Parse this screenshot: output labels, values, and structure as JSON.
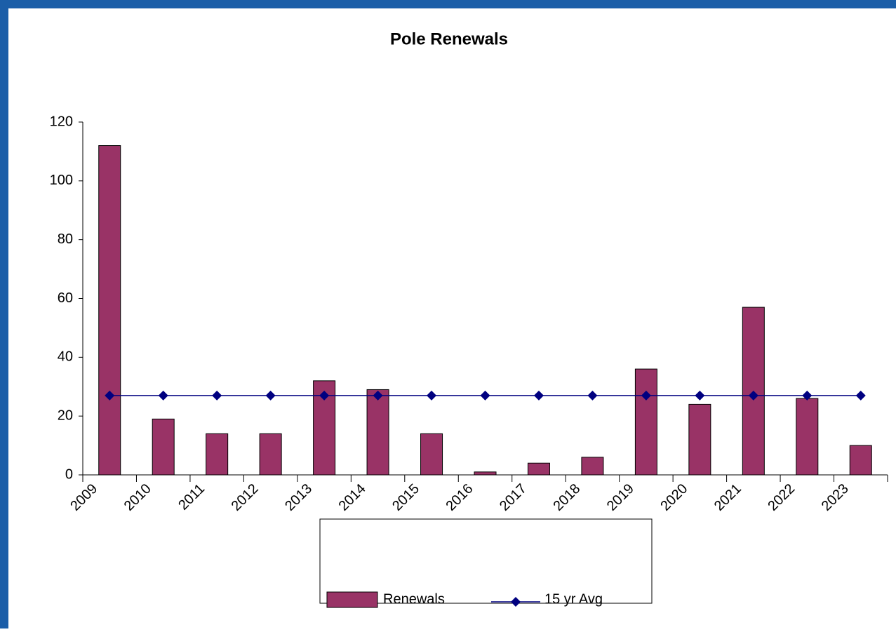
{
  "chart_data": {
    "type": "bar_line",
    "title": "Pole Renewals",
    "categories": [
      "2009",
      "2010",
      "2011",
      "2012",
      "2013",
      "2014",
      "2015",
      "2016",
      "2017",
      "2018",
      "2019",
      "2020",
      "2021",
      "2022",
      "2023"
    ],
    "series": [
      {
        "name": "Renewals",
        "type": "bar",
        "color": "#993366",
        "values": [
          112,
          19,
          14,
          14,
          32,
          29,
          14,
          1,
          4,
          6,
          36,
          24,
          57,
          26,
          10
        ]
      },
      {
        "name": "15 yr Avg",
        "type": "line",
        "color": "#000080",
        "values": [
          27,
          27,
          27,
          27,
          27,
          27,
          27,
          27,
          27,
          27,
          27,
          27,
          27,
          27,
          27
        ]
      }
    ],
    "ylim": [
      0,
      120
    ],
    "yticks": [
      0,
      20,
      40,
      60,
      80,
      100,
      120
    ],
    "legend": "bottom"
  }
}
